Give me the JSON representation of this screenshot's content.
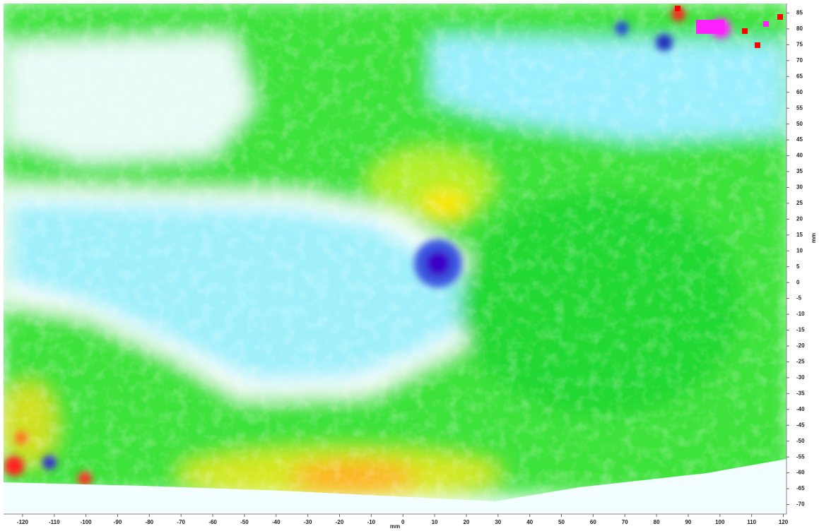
{
  "chart_data": {
    "type": "heatmap",
    "x_label": "mm",
    "y_label": "mm",
    "xlim": [
      -126,
      121
    ],
    "ylim": [
      -73,
      88
    ],
    "xticks": [
      -120,
      -110,
      -100,
      -90,
      -80,
      -70,
      -60,
      -50,
      -40,
      -30,
      -20,
      -10,
      0,
      10,
      20,
      30,
      40,
      50,
      60,
      70,
      80,
      90,
      100,
      110,
      120
    ],
    "yticks": [
      -70,
      -65,
      -60,
      -55,
      -50,
      -45,
      -40,
      -35,
      -30,
      -25,
      -20,
      -15,
      -10,
      -5,
      0,
      5,
      10,
      15,
      20,
      25,
      30,
      35,
      40,
      45,
      50,
      55,
      60,
      65,
      70,
      75,
      80,
      85
    ],
    "grid": false
  }
}
